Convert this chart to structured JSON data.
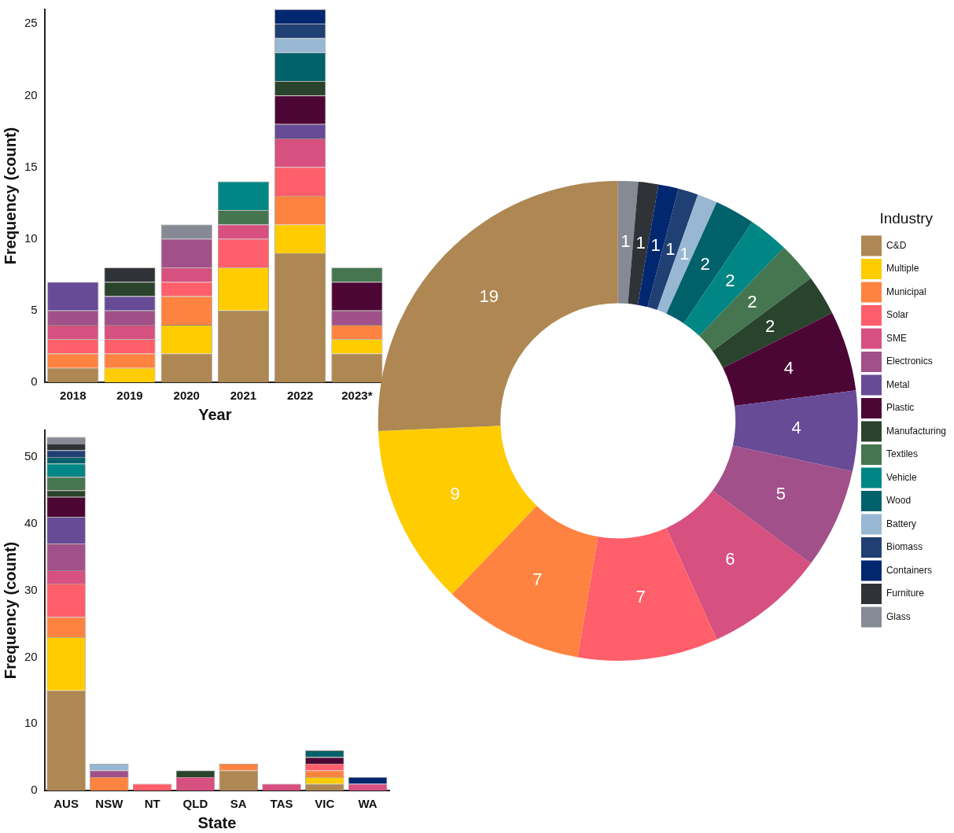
{
  "chart_data": [
    {
      "type": "bar",
      "stacked": true,
      "xlabel": "Year",
      "ylabel": "Frequency (count)",
      "categories": [
        "2018",
        "2019",
        "2020",
        "2021",
        "2022",
        "2023*"
      ],
      "ylim": [
        0,
        26
      ],
      "yticks": [
        0,
        5,
        10,
        15,
        20,
        25
      ],
      "grid": false,
      "legend": false,
      "series": [
        {
          "color": "#ae8753",
          "values": [
            1,
            0,
            2,
            5,
            9,
            2
          ]
        },
        {
          "color": "#ffcc00",
          "values": [
            0,
            1,
            2,
            3,
            2,
            1
          ]
        },
        {
          "color": "#ff8340",
          "values": [
            1,
            1,
            2,
            0,
            2,
            1
          ]
        },
        {
          "color": "#ff5f6a",
          "values": [
            1,
            1,
            1,
            2,
            2,
            0
          ]
        },
        {
          "color": "#d65080",
          "values": [
            1,
            1,
            1,
            1,
            2,
            0
          ]
        },
        {
          "color": "#a15089",
          "values": [
            1,
            1,
            2,
            0,
            0,
            1
          ]
        },
        {
          "color": "#674b97",
          "values": [
            2,
            1,
            0,
            0,
            1,
            0
          ]
        },
        {
          "color": "#4c0635",
          "values": [
            0,
            0,
            0,
            0,
            2,
            2
          ]
        },
        {
          "color": "#2a432c",
          "values": [
            0,
            1,
            0,
            0,
            1,
            0
          ]
        },
        {
          "color": "#457650",
          "values": [
            0,
            0,
            0,
            1,
            0,
            1
          ]
        },
        {
          "color": "#008785",
          "values": [
            0,
            0,
            0,
            2,
            0,
            0
          ]
        },
        {
          "color": "#00616a",
          "values": [
            0,
            0,
            0,
            0,
            2,
            0
          ]
        },
        {
          "color": "#98b7d2",
          "values": [
            0,
            0,
            0,
            0,
            1,
            0
          ]
        },
        {
          "color": "#203f73",
          "values": [
            0,
            0,
            0,
            0,
            1,
            0
          ]
        },
        {
          "color": "#012771",
          "values": [
            0,
            0,
            0,
            0,
            1,
            0
          ]
        },
        {
          "color": "#2f3338",
          "values": [
            0,
            1,
            0,
            0,
            0,
            0
          ]
        },
        {
          "color": "#858a95",
          "values": [
            0,
            0,
            1,
            0,
            0,
            0
          ]
        }
      ]
    },
    {
      "type": "bar",
      "stacked": true,
      "xlabel": "State",
      "ylabel": "Frequency (count)",
      "categories": [
        "AUS",
        "NSW",
        "NT",
        "QLD",
        "SA",
        "TAS",
        "VIC",
        "WA"
      ],
      "ylim": [
        0,
        54
      ],
      "yticks": [
        0,
        10,
        20,
        30,
        40,
        50
      ],
      "grid": false,
      "legend": false,
      "series": [
        {
          "color": "#ae8753",
          "values": [
            15,
            0,
            0,
            0,
            3,
            0,
            1,
            0
          ]
        },
        {
          "color": "#ffcc00",
          "values": [
            8,
            0,
            0,
            0,
            0,
            0,
            1,
            0
          ]
        },
        {
          "color": "#ff8340",
          "values": [
            3,
            2,
            0,
            0,
            1,
            0,
            1,
            0
          ]
        },
        {
          "color": "#ff5f6a",
          "values": [
            5,
            0,
            1,
            0,
            0,
            0,
            1,
            0
          ]
        },
        {
          "color": "#d65080",
          "values": [
            2,
            0,
            0,
            2,
            0,
            1,
            0,
            1
          ]
        },
        {
          "color": "#a15089",
          "values": [
            4,
            1,
            0,
            0,
            0,
            0,
            0,
            0
          ]
        },
        {
          "color": "#674b97",
          "values": [
            4,
            0,
            0,
            0,
            0,
            0,
            0,
            0
          ]
        },
        {
          "color": "#4c0635",
          "values": [
            3,
            0,
            0,
            0,
            0,
            0,
            1,
            0
          ]
        },
        {
          "color": "#2a432c",
          "values": [
            1,
            0,
            0,
            1,
            0,
            0,
            0,
            0
          ]
        },
        {
          "color": "#457650",
          "values": [
            2,
            0,
            0,
            0,
            0,
            0,
            0,
            0
          ]
        },
        {
          "color": "#008785",
          "values": [
            2,
            0,
            0,
            0,
            0,
            0,
            0,
            0
          ]
        },
        {
          "color": "#00616a",
          "values": [
            1,
            0,
            0,
            0,
            0,
            0,
            1,
            0
          ]
        },
        {
          "color": "#98b7d2",
          "values": [
            0,
            1,
            0,
            0,
            0,
            0,
            0,
            0
          ]
        },
        {
          "color": "#203f73",
          "values": [
            1,
            0,
            0,
            0,
            0,
            0,
            0,
            0
          ]
        },
        {
          "color": "#012771",
          "values": [
            0,
            0,
            0,
            0,
            0,
            0,
            0,
            1
          ]
        },
        {
          "color": "#2f3338",
          "values": [
            1,
            0,
            0,
            0,
            0,
            0,
            0,
            0
          ]
        },
        {
          "color": "#858a95",
          "values": [
            1,
            0,
            0,
            0,
            0,
            0,
            0,
            0
          ]
        }
      ]
    },
    {
      "type": "donut",
      "legend": "right",
      "legend_title": "Industry",
      "data_labels": true,
      "categories": [
        "Glass",
        "Furniture",
        "Containers",
        "Biomass",
        "Battery",
        "Wood",
        "Vehicle",
        "Textiles",
        "Manufacturing",
        "Plastic",
        "Metal",
        "Electronics",
        "SME",
        "Solar",
        "Municipal",
        "Multiple",
        "C&D"
      ],
      "values": [
        1,
        1,
        1,
        1,
        1,
        2,
        2,
        2,
        2,
        4,
        4,
        5,
        6,
        7,
        7,
        9,
        19
      ],
      "colors": [
        "#858a95",
        "#2f3338",
        "#012771",
        "#203f73",
        "#98b7d2",
        "#00616a",
        "#008785",
        "#457650",
        "#2a432c",
        "#4c0635",
        "#674b97",
        "#a15089",
        "#d65080",
        "#ff5f6a",
        "#ff8340",
        "#ffcc00",
        "#ae8753"
      ]
    }
  ]
}
